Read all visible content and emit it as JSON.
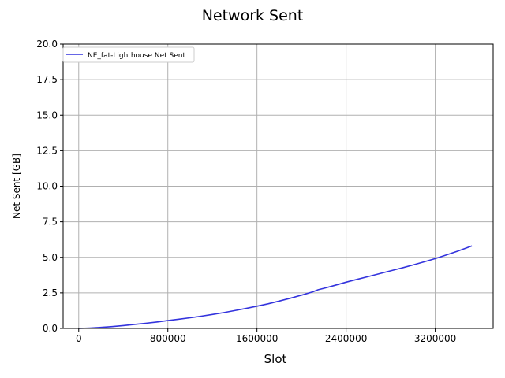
{
  "chart_data": {
    "type": "line",
    "title": "Network Sent",
    "xlabel": "Slot",
    "ylabel": "Net Sent [GB]",
    "xlim": [
      -140000,
      3720000
    ],
    "ylim": [
      0,
      20
    ],
    "xticks": [
      0,
      800000,
      1600000,
      2400000,
      3200000
    ],
    "xtick_labels": [
      "0",
      "800000",
      "1600000",
      "2400000",
      "3200000"
    ],
    "yticks": [
      0,
      2.5,
      5,
      7.5,
      10,
      12.5,
      15,
      17.5,
      20
    ],
    "ytick_labels": [
      "0.0",
      "2.5",
      "5.0",
      "7.5",
      "10.0",
      "12.5",
      "15.0",
      "17.5",
      "20.0"
    ],
    "grid": true,
    "legend_position": "top-left",
    "series": [
      {
        "name": "NE_fat-Lighthouse Net Sent",
        "color": "#3333dd",
        "x": [
          0,
          100000,
          200000,
          300000,
          400000,
          500000,
          600000,
          700000,
          800000,
          900000,
          1000000,
          1100000,
          1200000,
          1300000,
          1400000,
          1500000,
          1600000,
          1700000,
          1800000,
          1900000,
          2000000,
          2100000,
          2150000,
          2200000,
          2300000,
          2400000,
          2500000,
          2600000,
          2700000,
          2800000,
          2900000,
          3000000,
          3100000,
          3200000,
          3300000,
          3400000,
          3530000
        ],
        "values": [
          0.0,
          0.03,
          0.07,
          0.13,
          0.2,
          0.28,
          0.36,
          0.45,
          0.55,
          0.65,
          0.75,
          0.86,
          0.98,
          1.11,
          1.25,
          1.4,
          1.56,
          1.73,
          1.92,
          2.12,
          2.34,
          2.57,
          2.72,
          2.82,
          3.03,
          3.25,
          3.45,
          3.65,
          3.85,
          4.05,
          4.25,
          4.46,
          4.68,
          4.91,
          5.17,
          5.43,
          5.8
        ]
      }
    ]
  }
}
